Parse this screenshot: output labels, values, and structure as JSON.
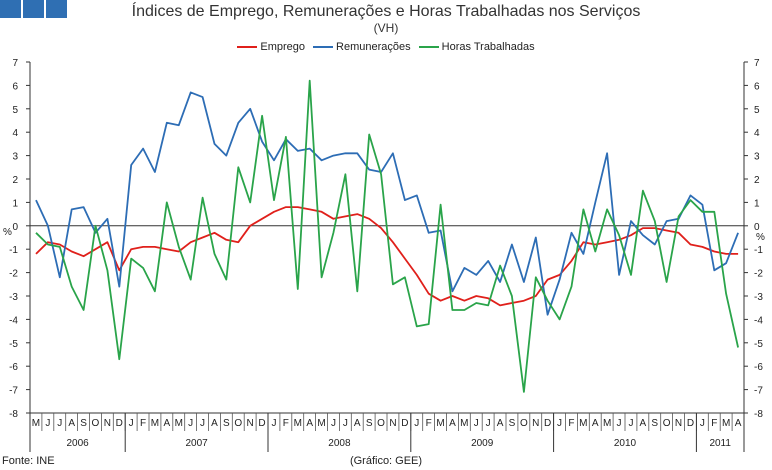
{
  "header": {
    "logo_colors": [
      "#2f6fb3",
      "#2f6fb3",
      "#2f6fb3"
    ],
    "title": "Índices de Emprego, Remunerações e Horas Trabalhadas nos Serviços",
    "subtitle": "(VH)"
  },
  "footer": {
    "source": "Fonte: INE",
    "credit": "(Gráfico: GEE)"
  },
  "chart_data": {
    "type": "line",
    "title": "Índices de Emprego, Remunerações e Horas Trabalhadas nos Serviços",
    "subtitle": "(VH)",
    "ylabel_left": "%",
    "ylabel_right": "%",
    "ylim": [
      -8,
      7
    ],
    "yticks": [
      -8,
      -7,
      -6,
      -5,
      -4,
      -3,
      -2,
      -1,
      0,
      1,
      2,
      3,
      4,
      5,
      6,
      7
    ],
    "grid": false,
    "legend_position": "top-center",
    "x_month_labels": [
      "M",
      "J",
      "J",
      "A",
      "S",
      "O",
      "N",
      "D",
      "J",
      "F",
      "M",
      "A",
      "M",
      "J",
      "J",
      "A",
      "S",
      "O",
      "N",
      "D",
      "J",
      "F",
      "M",
      "A",
      "M",
      "J",
      "J",
      "A",
      "S",
      "O",
      "N",
      "D",
      "J",
      "F",
      "M",
      "A",
      "M",
      "J",
      "J",
      "A",
      "S",
      "O",
      "N",
      "D",
      "J",
      "F",
      "M",
      "A",
      "M",
      "J",
      "J",
      "A",
      "S",
      "O",
      "N",
      "D",
      "J",
      "F",
      "M",
      "A"
    ],
    "year_groups": [
      {
        "label": "2006",
        "months": 8
      },
      {
        "label": "2007",
        "months": 12
      },
      {
        "label": "2008",
        "months": 12
      },
      {
        "label": "2009",
        "months": 12
      },
      {
        "label": "2010",
        "months": 12
      },
      {
        "label": "2011",
        "months": 4
      }
    ],
    "series": [
      {
        "name": "Emprego",
        "color": "#e0201b",
        "values": [
          -1.2,
          -0.7,
          -0.8,
          -1.1,
          -1.3,
          -1.0,
          -0.7,
          -1.9,
          -1.0,
          -0.9,
          -0.9,
          -1.0,
          -1.1,
          -0.7,
          -0.5,
          -0.3,
          -0.6,
          -0.7,
          0.0,
          0.3,
          0.6,
          0.8,
          0.8,
          0.7,
          0.6,
          0.3,
          0.4,
          0.5,
          0.3,
          -0.1,
          -0.7,
          -1.4,
          -2.1,
          -2.9,
          -3.2,
          -3.0,
          -3.2,
          -3.0,
          -3.1,
          -3.4,
          -3.3,
          -3.2,
          -3.0,
          -2.3,
          -2.1,
          -1.5,
          -0.7,
          -0.8,
          -0.7,
          -0.6,
          -0.4,
          -0.1,
          -0.1,
          -0.2,
          -0.3,
          -0.8,
          -0.9,
          -1.1,
          -1.2,
          -1.2
        ]
      },
      {
        "name": "Remunerações",
        "color": "#2d6db5",
        "values": [
          1.1,
          0.0,
          -2.2,
          0.7,
          0.8,
          -0.3,
          0.3,
          -2.6,
          2.6,
          3.3,
          2.3,
          4.4,
          4.3,
          5.7,
          5.5,
          3.5,
          3.0,
          4.4,
          5.0,
          3.6,
          2.8,
          3.7,
          3.2,
          3.3,
          2.8,
          3.0,
          3.1,
          3.1,
          2.4,
          2.3,
          3.1,
          1.1,
          1.3,
          -0.3,
          -0.2,
          -2.8,
          -1.8,
          -2.1,
          -1.5,
          -2.4,
          -0.8,
          -2.4,
          -0.5,
          -3.8,
          -2.3,
          -0.3,
          -1.2,
          1.0,
          3.1,
          -2.1,
          0.2,
          -0.4,
          -0.8,
          0.2,
          0.3,
          1.3,
          0.9,
          -1.9,
          -1.6,
          -0.3
        ]
      },
      {
        "name": "Horas Trabalhadas",
        "color": "#2aa44a",
        "values": [
          -0.3,
          -0.8,
          -0.9,
          -2.6,
          -3.6,
          0.0,
          -1.9,
          -5.7,
          -1.4,
          -1.8,
          -2.8,
          1.0,
          -0.9,
          -2.3,
          1.2,
          -1.2,
          -2.3,
          2.5,
          1.0,
          4.7,
          1.1,
          3.8,
          -2.7,
          6.2,
          -2.2,
          -0.3,
          2.2,
          -2.8,
          3.9,
          2.2,
          -2.5,
          -2.2,
          -4.3,
          -4.2,
          0.9,
          -3.6,
          -3.6,
          -3.3,
          -3.4,
          -1.7,
          -3.0,
          -7.1,
          -2.2,
          -3.2,
          -4.0,
          -2.6,
          0.7,
          -1.1,
          0.7,
          -0.4,
          -2.1,
          1.5,
          0.2,
          -2.4,
          0.4,
          1.1,
          0.6,
          0.6,
          -2.9,
          -5.2
        ]
      }
    ]
  }
}
